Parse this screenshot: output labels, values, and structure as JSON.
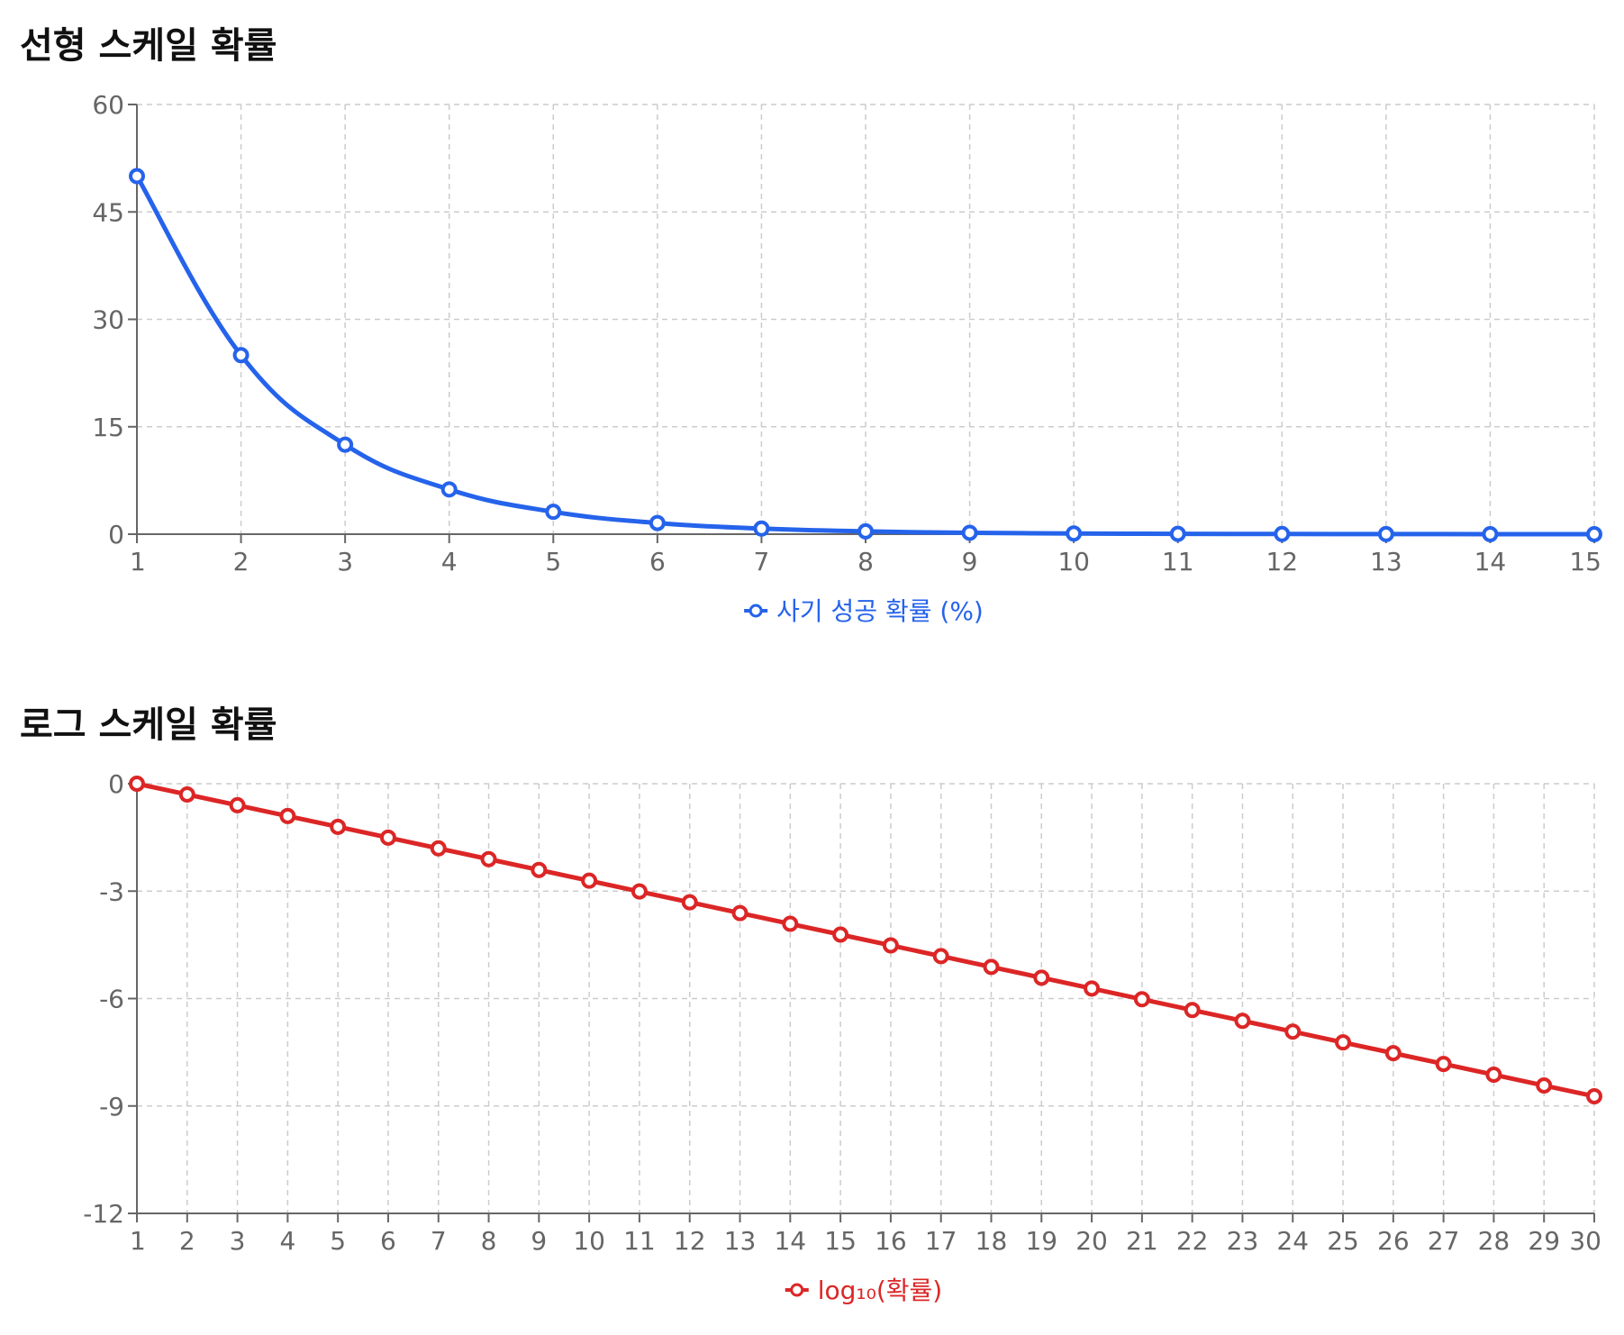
{
  "chart_data": [
    {
      "type": "line",
      "title": "선형 스케일 확률",
      "xlabel": "",
      "ylabel": "",
      "x": [
        1,
        2,
        3,
        4,
        5,
        6,
        7,
        8,
        9,
        10,
        11,
        12,
        13,
        14,
        15
      ],
      "series": [
        {
          "name": "사기 성공 확률 (%)",
          "color": "#2563eb",
          "values": [
            50,
            25,
            12.5,
            6.25,
            3.125,
            1.5625,
            0.78125,
            0.390625,
            0.1953125,
            0.09765625,
            0.048828125,
            0.0244140625,
            0.01220703125,
            0.006103515625,
            0.0030517578125
          ]
        }
      ],
      "ylim": [
        0,
        60
      ],
      "yticks": [
        0,
        15,
        30,
        45,
        60
      ],
      "grid": true,
      "smooth": true,
      "legend_position": "bottom-center"
    },
    {
      "type": "line",
      "title": "로그 스케일 확률",
      "xlabel": "",
      "ylabel": "",
      "x": [
        1,
        2,
        3,
        4,
        5,
        6,
        7,
        8,
        9,
        10,
        11,
        12,
        13,
        14,
        15,
        16,
        17,
        18,
        19,
        20,
        21,
        22,
        23,
        24,
        25,
        26,
        27,
        28,
        29,
        30
      ],
      "series": [
        {
          "name": "log₁₀(확률)",
          "color": "#dc2626",
          "values": [
            0,
            -0.301,
            -0.602,
            -0.903,
            -1.204,
            -1.505,
            -1.806,
            -2.107,
            -2.408,
            -2.709,
            -3.01,
            -3.311,
            -3.612,
            -3.913,
            -4.214,
            -4.515,
            -4.816,
            -5.117,
            -5.418,
            -5.719,
            -6.02,
            -6.321,
            -6.622,
            -6.923,
            -7.224,
            -7.525,
            -7.826,
            -8.127,
            -8.428,
            -8.729
          ]
        }
      ],
      "ylim": [
        -12,
        0
      ],
      "yticks": [
        -12,
        -9,
        -6,
        -3,
        0
      ],
      "grid": true,
      "smooth": false,
      "legend_position": "bottom-center"
    }
  ]
}
